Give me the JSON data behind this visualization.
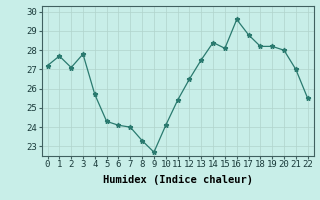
{
  "x": [
    0,
    1,
    2,
    3,
    4,
    5,
    6,
    7,
    8,
    9,
    10,
    11,
    12,
    13,
    14,
    15,
    16,
    17,
    18,
    19,
    20,
    21,
    22
  ],
  "y": [
    27.2,
    27.7,
    27.1,
    27.8,
    25.7,
    24.3,
    24.1,
    24.0,
    23.3,
    22.7,
    24.1,
    25.4,
    26.5,
    27.5,
    28.4,
    28.1,
    29.6,
    28.8,
    28.2,
    28.2,
    28.0,
    27.0,
    25.5
  ],
  "line_color": "#2a7a6f",
  "marker": "*",
  "marker_size": 3.5,
  "bg_color": "#c8eee8",
  "grid_color": "#b0d4cc",
  "xlabel": "Humidex (Indice chaleur)",
  "ylim": [
    22.5,
    30.3
  ],
  "yticks": [
    23,
    24,
    25,
    26,
    27,
    28,
    29,
    30
  ],
  "xticks": [
    0,
    1,
    2,
    3,
    4,
    5,
    6,
    7,
    8,
    9,
    10,
    11,
    12,
    13,
    14,
    15,
    16,
    17,
    18,
    19,
    20,
    21,
    22
  ],
  "xtick_labels": [
    "0",
    "1",
    "2",
    "3",
    "4",
    "5",
    "6",
    "7",
    "8",
    "9",
    "10",
    "11",
    "12",
    "13",
    "14",
    "15",
    "16",
    "17",
    "18",
    "19",
    "20",
    "21",
    "22"
  ],
  "xlabel_fontsize": 7.5,
  "tick_fontsize": 6.5,
  "spine_color": "#406060",
  "tick_color": "#406060"
}
